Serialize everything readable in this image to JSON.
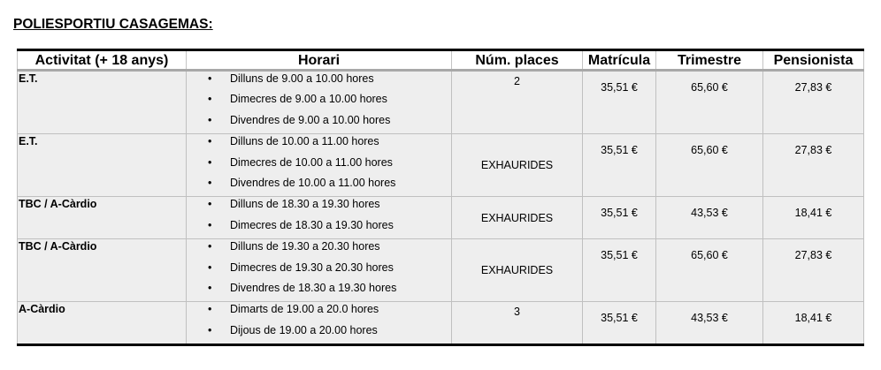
{
  "title": "POLIESPORTIU CASAGEMAS:",
  "headers": [
    "Activitat (+ 18 anys)",
    "Horari",
    "Núm. places",
    "Matrícula",
    "Trimestre",
    "Pensionista"
  ],
  "rows": [
    {
      "activity": "E.T.",
      "schedule": [
        "Dilluns de 9.00 a 10.00 hores",
        "Dimecres de 9.00 a 10.00 hores",
        "Divendres de 9.00 a 10.00 hores"
      ],
      "places": "2",
      "matricula": "35,51 €",
      "trimestre": "65,60 €",
      "pensionista": "27,83 €"
    },
    {
      "activity": "E.T.",
      "schedule": [
        "Dilluns de 10.00 a 11.00 hores",
        "Dimecres de 10.00 a 11.00 hores",
        "Divendres de 10.00 a 11.00 hores"
      ],
      "places": "EXHAURIDES",
      "matricula": "35,51 €",
      "trimestre": "65,60 €",
      "pensionista": "27,83 €"
    },
    {
      "activity": "TBC / A-Càrdio",
      "schedule": [
        "Dilluns de 18.30 a 19.30 hores",
        "Dimecres de 18.30 a 19.30 hores"
      ],
      "places": "EXHAURIDES",
      "matricula": "35,51 €",
      "trimestre": "43,53 €",
      "pensionista": "18,41 €"
    },
    {
      "activity": "TBC / A-Càrdio",
      "schedule": [
        "Dilluns de 19.30 a 20.30 hores",
        "Dimecres de 19.30 a 20.30 hores",
        "Divendres de 18.30 a 19.30 hores"
      ],
      "places": "EXHAURIDES",
      "matricula": "35,51 €",
      "trimestre": "65,60 €",
      "pensionista": "27,83 €"
    },
    {
      "activity": "A-Càrdio",
      "schedule": [
        "Dimarts de 19.00 a 20.0 hores",
        "Dijous de 19.00 a 20.00 hores"
      ],
      "places": "3",
      "matricula": "35,51 €",
      "trimestre": "43,53 €",
      "pensionista": "18,41 €"
    }
  ]
}
